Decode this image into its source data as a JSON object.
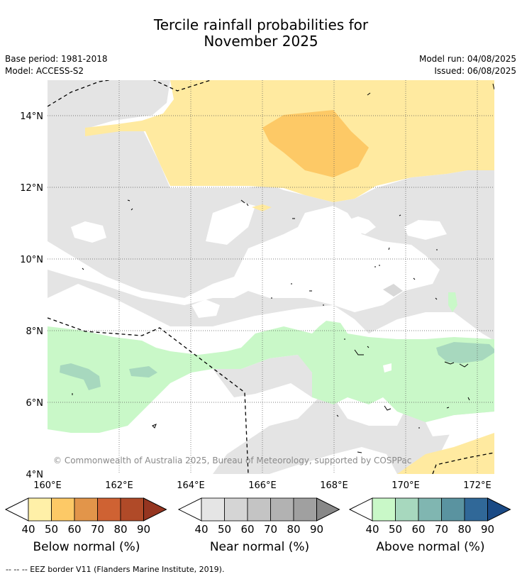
{
  "header": {
    "title_line1": "Tercile rainfall probabilities for",
    "title_line2": "November 2025",
    "base_period": "Base period: 1981-2018",
    "model": "Model: ACCESS-S2",
    "model_run": "Model run: 04/08/2025",
    "issued": "Issued: 06/08/2025"
  },
  "map": {
    "lon_ticks": [
      "160°E",
      "162°E",
      "164°E",
      "166°E",
      "168°E",
      "170°E",
      "172°E"
    ],
    "lat_ticks": [
      "14°N",
      "12°N",
      "10°N",
      "8°N",
      "6°N",
      "4°N"
    ],
    "copyright": "© Commonwealth of Australia 2025, Bureau of Meteorology, supported by COSPPac",
    "region": {
      "lon_min": 160,
      "lon_max": 172.5,
      "lat_min": 4,
      "lat_max": 15
    }
  },
  "colorbars": [
    {
      "label": "Below normal (%)",
      "ticks": [
        "40",
        "50",
        "60",
        "70",
        "80",
        "90"
      ],
      "colors": [
        "#fff0a8",
        "#fdc966",
        "#e2954a",
        "#cf6233",
        "#b04a28",
        "#953520"
      ]
    },
    {
      "label": "Near normal (%)",
      "ticks": [
        "40",
        "50",
        "60",
        "70",
        "80",
        "90"
      ],
      "colors": [
        "#e5e5e5",
        "#d5d5d5",
        "#c4c4c4",
        "#b2b2b2",
        "#a0a0a0",
        "#888888"
      ]
    },
    {
      "label": "Above normal (%)",
      "ticks": [
        "40",
        "50",
        "60",
        "70",
        "80",
        "90"
      ],
      "colors": [
        "#c9f8c8",
        "#a7d8be",
        "#80b6b1",
        "#5a93a0",
        "#306898",
        "#1a4a85"
      ]
    }
  ],
  "footnote": "--  --  -- EEZ border V11 (Flanders Marine Institute, 2019)."
}
